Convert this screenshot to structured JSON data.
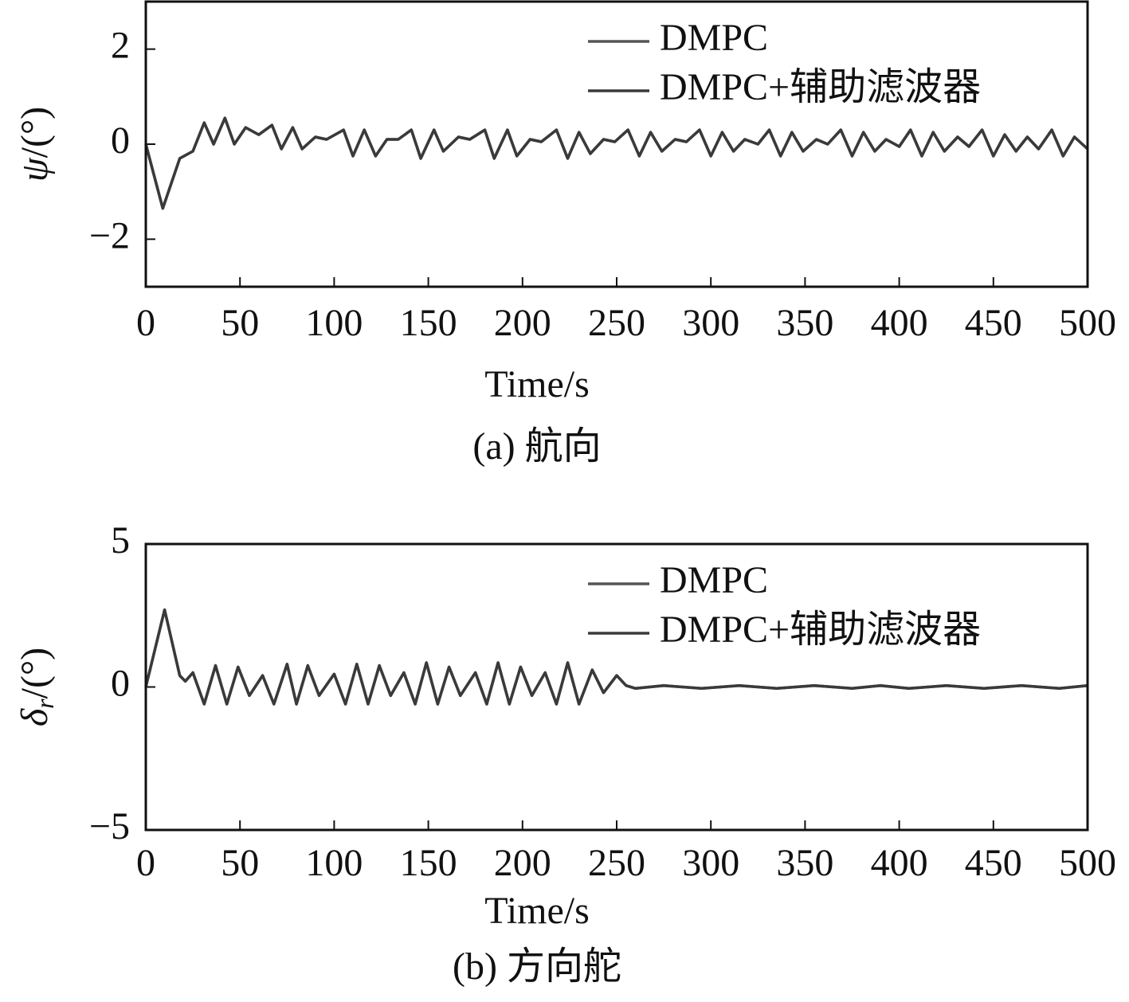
{
  "chart_data": [
    {
      "type": "line",
      "caption": "(a) 航向",
      "xlabel": "Time/s",
      "ylabel": {
        "symbol": "ψ",
        "unit": "/(°)"
      },
      "xlim": [
        0,
        500
      ],
      "xticks": [
        0,
        50,
        100,
        150,
        200,
        250,
        300,
        350,
        400,
        450,
        500
      ],
      "ylim": [
        -3,
        3
      ],
      "yticks": [
        {
          "value": -2,
          "label": "−2"
        },
        0,
        2
      ],
      "x": [
        0,
        9,
        18,
        25,
        31,
        36,
        42,
        47,
        53,
        60,
        67,
        72,
        78,
        83,
        90,
        96,
        105,
        110,
        116,
        122,
        128,
        134,
        141,
        146,
        153,
        158,
        166,
        172,
        180,
        185,
        192,
        197,
        204,
        210,
        218,
        224,
        230,
        236,
        243,
        249,
        256,
        262,
        268,
        274,
        281,
        287,
        294,
        300,
        306,
        312,
        318,
        325,
        331,
        337,
        343,
        349,
        356,
        362,
        369,
        375,
        381,
        387,
        393,
        400,
        406,
        412,
        418,
        424,
        431,
        437,
        444,
        450,
        456,
        462,
        468,
        474,
        481,
        487,
        493,
        500
      ],
      "series": [
        {
          "name": "DMPC",
          "color": "#555555",
          "values": [
            0,
            -1.35,
            -0.3,
            -0.15,
            0.45,
            0.0,
            0.55,
            0.0,
            0.35,
            0.2,
            0.4,
            -0.1,
            0.35,
            -0.1,
            0.15,
            0.1,
            0.3,
            -0.25,
            0.3,
            -0.25,
            0.1,
            0.1,
            0.3,
            -0.3,
            0.3,
            -0.15,
            0.15,
            0.1,
            0.3,
            -0.3,
            0.3,
            -0.25,
            0.1,
            0.05,
            0.3,
            -0.3,
            0.25,
            -0.2,
            0.1,
            0.05,
            0.3,
            -0.25,
            0.25,
            -0.15,
            0.1,
            0.05,
            0.3,
            -0.25,
            0.25,
            -0.15,
            0.1,
            0.0,
            0.3,
            -0.25,
            0.25,
            -0.15,
            0.1,
            0.0,
            0.3,
            -0.25,
            0.25,
            -0.15,
            0.1,
            -0.05,
            0.3,
            -0.25,
            0.25,
            -0.15,
            0.15,
            -0.05,
            0.3,
            -0.25,
            0.2,
            -0.15,
            0.15,
            -0.1,
            0.3,
            -0.25,
            0.15,
            -0.1
          ]
        },
        {
          "name": "DMPC+辅助滤波器",
          "color": "#3a3a3a",
          "values": [
            0,
            -1.35,
            -0.3,
            -0.15,
            0.45,
            0.0,
            0.55,
            0.0,
            0.35,
            0.2,
            0.4,
            -0.1,
            0.35,
            -0.1,
            0.15,
            0.1,
            0.3,
            -0.25,
            0.3,
            -0.25,
            0.1,
            0.1,
            0.3,
            -0.3,
            0.3,
            -0.15,
            0.15,
            0.1,
            0.3,
            -0.3,
            0.3,
            -0.25,
            0.1,
            0.05,
            0.3,
            -0.3,
            0.25,
            -0.2,
            0.1,
            0.05,
            0.3,
            -0.25,
            0.25,
            -0.15,
            0.1,
            0.05,
            0.3,
            -0.25,
            0.25,
            -0.15,
            0.1,
            0.0,
            0.3,
            -0.25,
            0.25,
            -0.15,
            0.1,
            0.0,
            0.3,
            -0.25,
            0.25,
            -0.15,
            0.1,
            -0.05,
            0.3,
            -0.25,
            0.25,
            -0.15,
            0.15,
            -0.05,
            0.3,
            -0.25,
            0.2,
            -0.15,
            0.15,
            -0.1,
            0.3,
            -0.25,
            0.15,
            -0.1
          ]
        }
      ]
    },
    {
      "type": "line",
      "caption": "(b) 方向舵",
      "xlabel": "Time/s",
      "ylabel": {
        "symbol": "δ",
        "subscript": "r",
        "unit": "/(°)"
      },
      "xlim": [
        0,
        500
      ],
      "xticks": [
        0,
        50,
        100,
        150,
        200,
        250,
        300,
        350,
        400,
        450,
        500
      ],
      "ylim": [
        -5,
        5
      ],
      "yticks": [
        {
          "value": -5,
          "label": "−5"
        },
        0,
        5
      ],
      "x": [
        0,
        10,
        18,
        21,
        25,
        31,
        37,
        43,
        49,
        55,
        62,
        68,
        75,
        80,
        86,
        92,
        100,
        106,
        112,
        118,
        124,
        130,
        137,
        143,
        149,
        155,
        161,
        167,
        175,
        181,
        187,
        193,
        199,
        205,
        212,
        218,
        224,
        230,
        237,
        243,
        250,
        255,
        260,
        275,
        295,
        315,
        335,
        355,
        375,
        390,
        405,
        425,
        445,
        465,
        485,
        500
      ],
      "series": [
        {
          "name": "DMPC",
          "color": "#555555",
          "values": [
            0,
            2.7,
            0.4,
            0.2,
            0.5,
            -0.6,
            0.75,
            -0.6,
            0.7,
            -0.3,
            0.4,
            -0.6,
            0.8,
            -0.6,
            0.75,
            -0.3,
            0.45,
            -0.6,
            0.8,
            -0.6,
            0.75,
            -0.3,
            0.5,
            -0.6,
            0.85,
            -0.6,
            0.7,
            -0.3,
            0.5,
            -0.6,
            0.85,
            -0.6,
            0.7,
            -0.3,
            0.5,
            -0.6,
            0.85,
            -0.6,
            0.6,
            -0.2,
            0.4,
            0.05,
            -0.05,
            0.05,
            -0.05,
            0.05,
            -0.05,
            0.05,
            -0.05,
            0.05,
            -0.05,
            0.05,
            -0.05,
            0.05,
            -0.05,
            0.05
          ]
        },
        {
          "name": "DMPC+辅助滤波器",
          "color": "#3a3a3a",
          "values": [
            0,
            2.7,
            0.4,
            0.2,
            0.5,
            -0.6,
            0.75,
            -0.6,
            0.7,
            -0.3,
            0.4,
            -0.6,
            0.8,
            -0.6,
            0.75,
            -0.3,
            0.45,
            -0.6,
            0.8,
            -0.6,
            0.75,
            -0.3,
            0.5,
            -0.6,
            0.85,
            -0.6,
            0.7,
            -0.3,
            0.5,
            -0.6,
            0.85,
            -0.6,
            0.7,
            -0.3,
            0.5,
            -0.6,
            0.85,
            -0.6,
            0.6,
            -0.2,
            0.4,
            0.05,
            -0.05,
            0.05,
            -0.05,
            0.05,
            -0.05,
            0.05,
            -0.05,
            0.05,
            -0.05,
            0.05,
            -0.05,
            0.05,
            -0.05,
            0.05
          ]
        }
      ]
    }
  ]
}
